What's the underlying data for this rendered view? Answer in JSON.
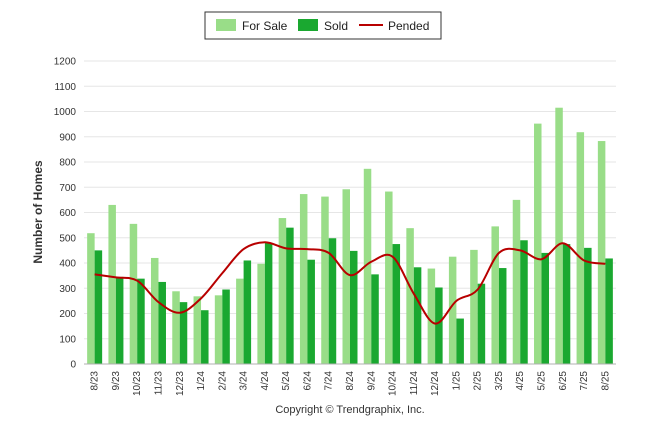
{
  "chart_data": {
    "type": "bar",
    "title": "",
    "xlabel": "",
    "ylabel": "Number of Homes",
    "ylim": [
      0,
      1200
    ],
    "yticks": [
      0,
      100,
      200,
      300,
      400,
      500,
      600,
      700,
      800,
      900,
      1000,
      1100,
      1200
    ],
    "grid": true,
    "legend_position": "top-center",
    "categories": [
      "8/23",
      "9/23",
      "10/23",
      "11/23",
      "12/23",
      "1/24",
      "2/24",
      "3/24",
      "4/24",
      "5/24",
      "6/24",
      "7/24",
      "8/24",
      "9/24",
      "10/24",
      "11/24",
      "12/24",
      "1/25",
      "2/25",
      "3/25",
      "4/25",
      "5/25",
      "6/25",
      "7/25",
      "8/25"
    ],
    "series": [
      {
        "name": "For Sale",
        "type": "bar",
        "color": "#99dd88",
        "values": [
          518,
          630,
          555,
          420,
          288,
          268,
          272,
          338,
          397,
          578,
          673,
          663,
          692,
          773,
          683,
          538,
          378,
          425,
          452,
          545,
          650,
          952,
          1015,
          918,
          883
        ]
      },
      {
        "name": "Sold",
        "type": "bar",
        "color": "#1aa830",
        "values": [
          450,
          345,
          338,
          325,
          245,
          213,
          295,
          410,
          480,
          540,
          413,
          498,
          448,
          355,
          475,
          383,
          303,
          180,
          318,
          380,
          490,
          440,
          475,
          460,
          418
        ]
      },
      {
        "name": "Pended",
        "type": "line",
        "color": "#b80000",
        "values": [
          355,
          343,
          330,
          245,
          203,
          260,
          360,
          455,
          482,
          458,
          455,
          440,
          352,
          405,
          425,
          278,
          160,
          250,
          295,
          440,
          450,
          415,
          478,
          410,
          397
        ]
      }
    ]
  },
  "legend": {
    "for_sale": "For Sale",
    "sold": "Sold",
    "pended": "Pended"
  },
  "credit": "Copyright © Trendgraphix, Inc."
}
